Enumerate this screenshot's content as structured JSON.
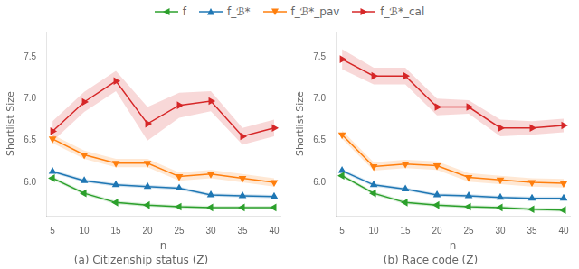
{
  "chart_data": [
    {
      "type": "line",
      "title": "(a) Citizenship status (Z)",
      "xlabel": "n",
      "ylabel": "Shortlist Size",
      "x": [
        5,
        10,
        15,
        20,
        25,
        30,
        35,
        40
      ],
      "series": [
        {
          "name": "f",
          "color": "#2ca02c",
          "marker": "triangle_left",
          "values": [
            6.05,
            5.87,
            5.76,
            5.73,
            5.71,
            5.7,
            5.7,
            5.7
          ],
          "yerr": [
            0.02,
            0.02,
            0.02,
            0.02,
            0.02,
            0.02,
            0.02,
            0.02
          ]
        },
        {
          "name": "f_ℬ*",
          "color": "#1f77b4",
          "marker": "triangle_up",
          "values": [
            6.13,
            6.02,
            5.97,
            5.95,
            5.93,
            5.85,
            5.84,
            5.83
          ],
          "yerr": [
            0.02,
            0.02,
            0.02,
            0.02,
            0.02,
            0.02,
            0.02,
            0.02
          ]
        },
        {
          "name": "f_ℬ*_pav",
          "color": "#ff7f0e",
          "marker": "triangle_down",
          "values": [
            6.52,
            6.33,
            6.23,
            6.23,
            6.07,
            6.1,
            6.05,
            6.0
          ],
          "yerr": [
            0.05,
            0.05,
            0.05,
            0.05,
            0.05,
            0.05,
            0.05,
            0.05
          ]
        },
        {
          "name": "f_ℬ*_cal",
          "color": "#d62728",
          "marker": "triangle_right",
          "values": [
            6.61,
            6.96,
            7.21,
            6.7,
            6.92,
            6.97,
            6.55,
            6.65
          ],
          "yerr": [
            0.12,
            0.12,
            0.12,
            0.2,
            0.15,
            0.12,
            0.1,
            0.1
          ]
        }
      ],
      "xlim": [
        4,
        41
      ],
      "xticks": [
        5,
        10,
        15,
        20,
        25,
        30,
        35,
        40
      ],
      "ylim": [
        5.6,
        7.8
      ],
      "yticks": [
        {
          "value": 6.0,
          "label": "6.0"
        },
        6.5,
        {
          "value": 7.0,
          "label": "7.0"
        },
        7.5
      ],
      "grid": false,
      "legend": "top"
    },
    {
      "type": "line",
      "title": "(b) Race code (Z)",
      "xlabel": "n",
      "ylabel": "Shortlist Size",
      "x": [
        5,
        10,
        15,
        20,
        25,
        30,
        35,
        40
      ],
      "series": [
        {
          "name": "f",
          "color": "#2ca02c",
          "marker": "triangle_left",
          "values": [
            6.08,
            5.87,
            5.76,
            5.73,
            5.71,
            5.7,
            5.68,
            5.67
          ],
          "yerr": [
            0.02,
            0.02,
            0.02,
            0.02,
            0.02,
            0.02,
            0.02,
            0.02
          ]
        },
        {
          "name": "f_ℬ*",
          "color": "#1f77b4",
          "marker": "triangle_up",
          "values": [
            6.14,
            5.97,
            5.92,
            5.85,
            5.84,
            5.82,
            5.81,
            5.81
          ],
          "yerr": [
            0.02,
            0.02,
            0.02,
            0.02,
            0.02,
            0.02,
            0.02,
            0.02
          ]
        },
        {
          "name": "f_ℬ*_pav",
          "color": "#ff7f0e",
          "marker": "triangle_down",
          "values": [
            6.57,
            6.19,
            6.22,
            6.2,
            6.06,
            6.03,
            6.0,
            5.99
          ],
          "yerr": [
            0.05,
            0.05,
            0.05,
            0.05,
            0.05,
            0.05,
            0.05,
            0.05
          ]
        },
        {
          "name": "f_ℬ*_cal",
          "color": "#d62728",
          "marker": "triangle_right",
          "values": [
            7.47,
            7.27,
            7.27,
            6.9,
            6.9,
            6.65,
            6.65,
            6.68
          ],
          "yerr": [
            0.12,
            0.1,
            0.1,
            0.1,
            0.08,
            0.1,
            0.08,
            0.08
          ]
        }
      ],
      "xlim": [
        4,
        41
      ],
      "xticks": [
        5,
        10,
        15,
        20,
        25,
        30,
        35,
        40
      ],
      "ylim": [
        5.6,
        7.8
      ],
      "yticks": [
        {
          "value": 6.0,
          "label": "6.0"
        },
        6.5,
        {
          "value": 7.0,
          "label": "7.0"
        },
        7.5
      ],
      "grid": false,
      "legend": "top"
    }
  ]
}
